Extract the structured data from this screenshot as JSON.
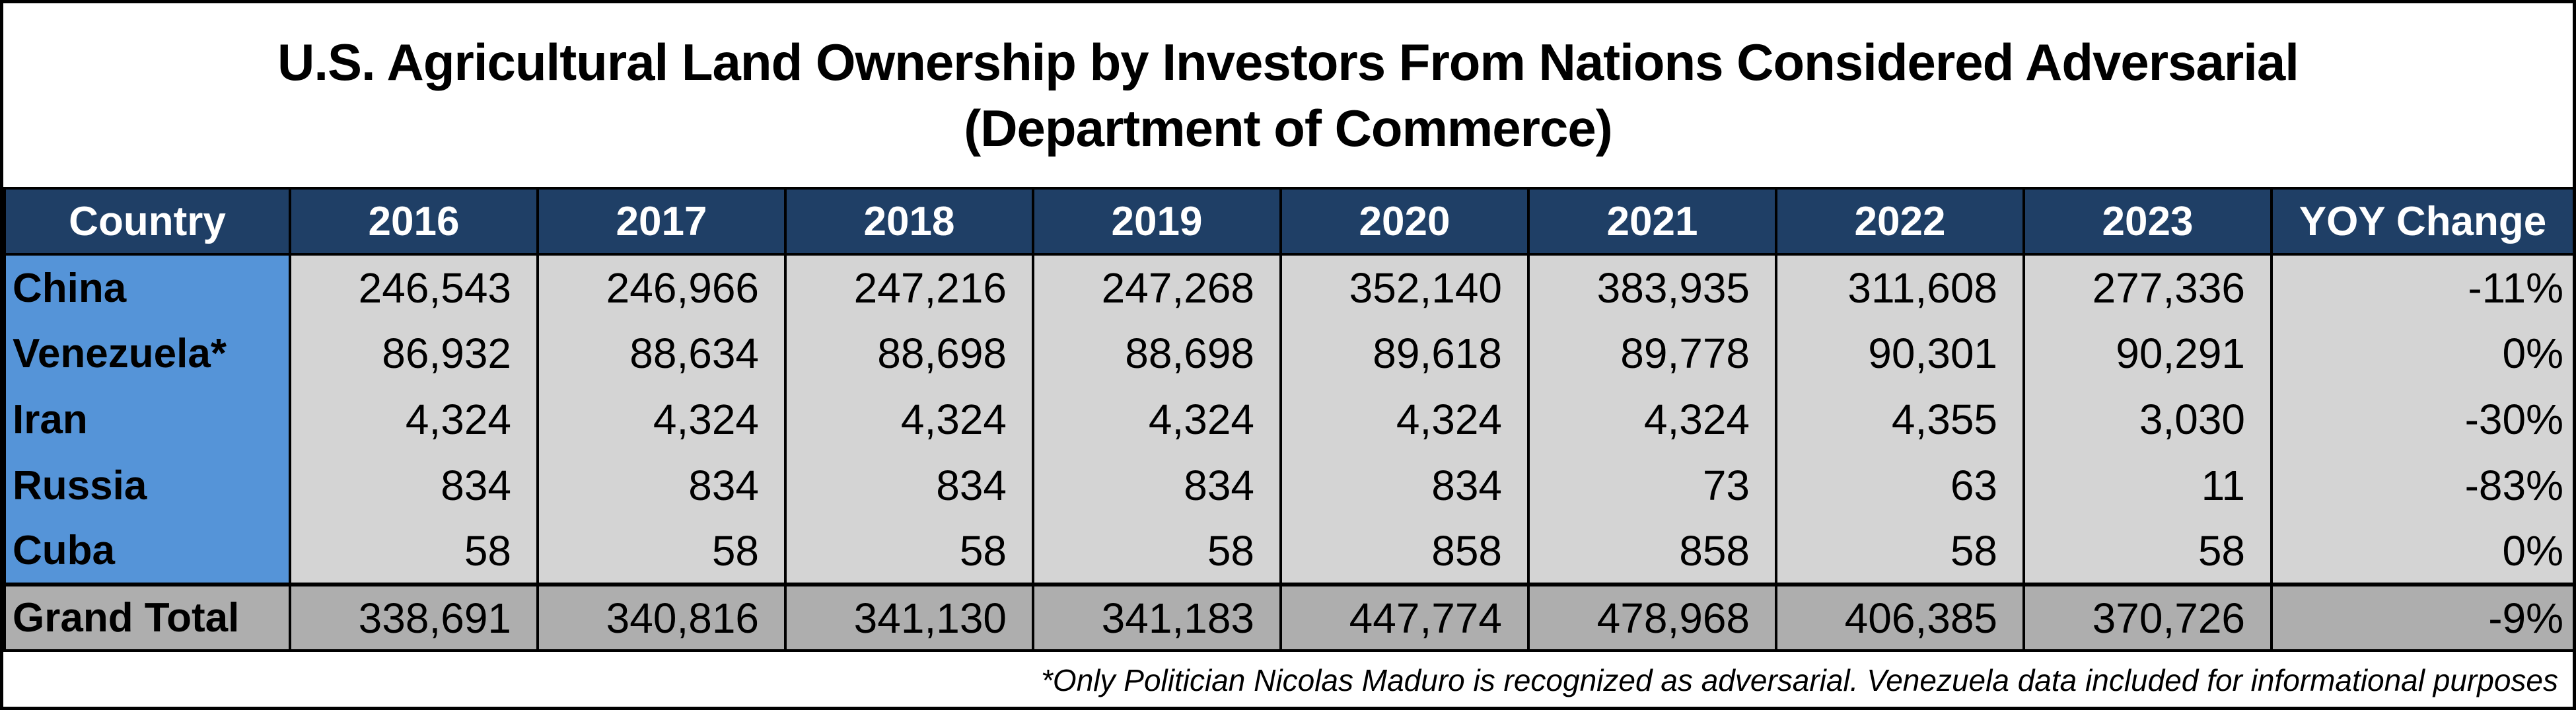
{
  "title": {
    "line1": "U.S. Agricultural Land Ownership by Investors From Nations Considered Adversarial",
    "line2": "(Department of Commerce)"
  },
  "chart_data": {
    "type": "table",
    "columns": [
      "Country",
      "2016",
      "2017",
      "2018",
      "2019",
      "2020",
      "2021",
      "2022",
      "2023",
      "YOY Change"
    ],
    "rows": [
      {
        "country": "China",
        "values": [
          "246,543",
          "246,966",
          "247,216",
          "247,268",
          "352,140",
          "383,935",
          "311,608",
          "277,336"
        ],
        "yoy": "-11%"
      },
      {
        "country": "Venezuela*",
        "values": [
          "86,932",
          "88,634",
          "88,698",
          "88,698",
          "89,618",
          "89,778",
          "90,301",
          "90,291"
        ],
        "yoy": "0%"
      },
      {
        "country": "Iran",
        "values": [
          "4,324",
          "4,324",
          "4,324",
          "4,324",
          "4,324",
          "4,324",
          "4,355",
          "3,030"
        ],
        "yoy": "-30%"
      },
      {
        "country": "Russia",
        "values": [
          "834",
          "834",
          "834",
          "834",
          "834",
          "73",
          "63",
          "11"
        ],
        "yoy": "-83%"
      },
      {
        "country": "Cuba",
        "values": [
          "58",
          "58",
          "58",
          "58",
          "858",
          "858",
          "58",
          "58"
        ],
        "yoy": "0%"
      }
    ],
    "total": {
      "label": "Grand Total",
      "values": [
        "338,691",
        "340,816",
        "341,130",
        "341,183",
        "447,774",
        "478,968",
        "406,385",
        "370,726"
      ],
      "yoy": "-9%"
    },
    "footnote": "*Only Politician Nicolas Maduro is recognized as adversarial. Venezuela data included for informational purposes"
  },
  "colors": {
    "header_bg": "#1f3f66",
    "header_text": "#ffffff",
    "country_bg": "#5594d8",
    "cell_bg": "#d4d4d4",
    "total_bg": "#aeaeae"
  }
}
